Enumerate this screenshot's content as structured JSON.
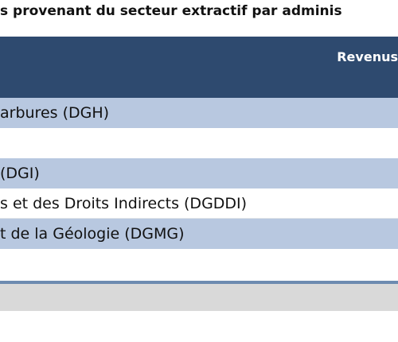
{
  "title": "s provenant du secteur extractif par adminis",
  "table": {
    "header_label": "Revenus",
    "rows": [
      {
        "label": "arbures (DGH)"
      },
      {
        "label": ""
      },
      {
        "label": "(DGI)"
      },
      {
        "label": "s et des Droits Indirects (DGDDI)"
      },
      {
        "label": "t de la Géologie (DGMG)"
      }
    ]
  },
  "colors": {
    "header_bg": "#2e4a6f",
    "row_shaded": "#b8c8e0",
    "rule": "#6d8bb0",
    "footer_band": "#d9d9d9"
  }
}
